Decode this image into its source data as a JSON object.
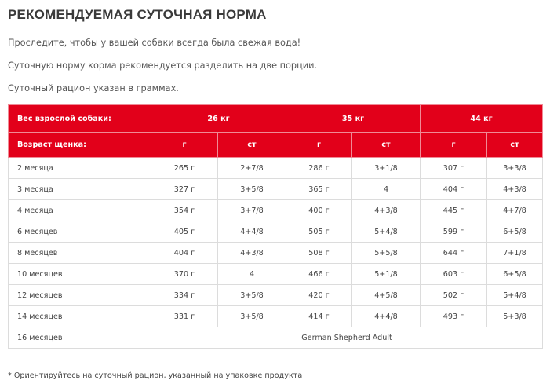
{
  "title": "РЕКОМЕНДУЕМАЯ СУТОЧНАЯ НОРМА",
  "notes": [
    "Проследите, чтобы у вашей собаки всегда была свежая вода!",
    "Суточную норму корма рекомендуется разделить на две порции.",
    "Суточный рацион указан в граммах."
  ],
  "table": {
    "header": {
      "label": "Вес взрослой собаки:",
      "weights": [
        "26 кг",
        "35 кг",
        "44 кг"
      ]
    },
    "subheader": {
      "label": "Возраст щенка:",
      "units": [
        "г",
        "ст",
        "г",
        "ст",
        "г",
        "ст"
      ]
    },
    "rows": [
      [
        "2 месяца",
        "265 г",
        "2+7/8",
        "286 г",
        "3+1/8",
        "307 г",
        "3+3/8"
      ],
      [
        "3 месяца",
        "327 г",
        "3+5/8",
        "365 г",
        "4",
        "404 г",
        "4+3/8"
      ],
      [
        "4 месяца",
        "354 г",
        "3+7/8",
        "400 г",
        "4+3/8",
        "445 г",
        "4+7/8"
      ],
      [
        "6 месяцев",
        "405 г",
        "4+4/8",
        "505 г",
        "5+4/8",
        "599 г",
        "6+5/8"
      ],
      [
        "8 месяцев",
        "404 г",
        "4+3/8",
        "508 г",
        "5+5/8",
        "644 г",
        "7+1/8"
      ],
      [
        "10 месяцев",
        "370 г",
        "4",
        "466 г",
        "5+1/8",
        "603 г",
        "6+5/8"
      ],
      [
        "12 месяцев",
        "334 г",
        "3+5/8",
        "420 г",
        "4+5/8",
        "502 г",
        "5+4/8"
      ],
      [
        "14 месяцев",
        "331 г",
        "3+5/8",
        "414 г",
        "4+4/8",
        "493 г",
        "5+3/8"
      ]
    ],
    "last_row": [
      "16 месяцев",
      "German Shepherd Adult"
    ]
  },
  "footnote": "* Ориентируйтесь на суточный рацион, указанный на упаковке продукта"
}
